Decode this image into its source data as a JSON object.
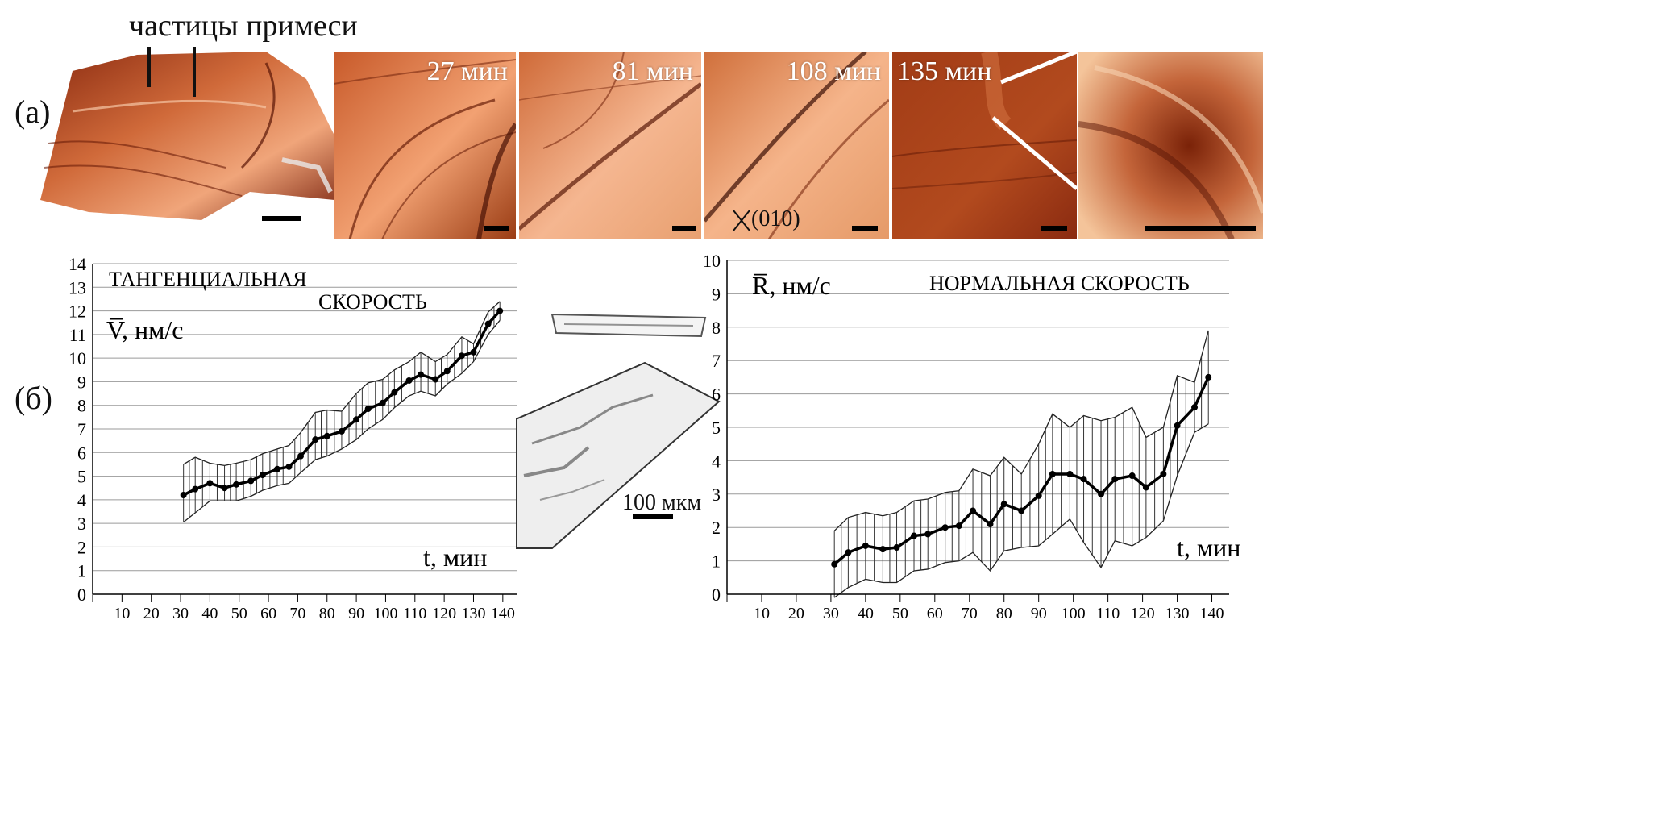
{
  "figure": {
    "label_a": "(а)",
    "label_b": "(б)",
    "impurity_label": "частицы примеси",
    "panels": [
      {
        "id": "3d",
        "time": ""
      },
      {
        "id": "p27",
        "time": "27 мин"
      },
      {
        "id": "p81",
        "time": "81 мин"
      },
      {
        "id": "p108",
        "time": "108 мин"
      },
      {
        "id": "p135",
        "time": "135 мин"
      },
      {
        "id": "zoom",
        "time": ""
      }
    ],
    "orientation_label": "(010)",
    "crystal_scale": "100 мкм"
  },
  "chart_data": [
    {
      "type": "line",
      "title": "ТАНГЕНЦИАЛЬНАЯ СКОРОСТЬ",
      "title_line1": "ТАНГЕНЦИАЛЬНАЯ",
      "title_line2": "СКОРОСТЬ",
      "ylabel": "V̅, нм/с",
      "xlabel": "t, мин",
      "xlim": [
        0,
        145
      ],
      "ylim": [
        0,
        14
      ],
      "xticks": [
        10,
        20,
        30,
        40,
        50,
        60,
        70,
        80,
        90,
        100,
        110,
        120,
        130,
        140
      ],
      "yticks": [
        0,
        1,
        2,
        3,
        4,
        5,
        6,
        7,
        8,
        9,
        10,
        11,
        12,
        13,
        14
      ],
      "grid": "horizontal",
      "series": [
        {
          "x": [
            31,
            35,
            40,
            45,
            49,
            54,
            58,
            63,
            67,
            71,
            76,
            80,
            85,
            90,
            94,
            99,
            103,
            108,
            112,
            117,
            121,
            126,
            130,
            135,
            139
          ],
          "y": [
            4.2,
            4.45,
            4.7,
            4.5,
            4.65,
            4.8,
            5.05,
            5.3,
            5.4,
            5.85,
            6.55,
            6.7,
            6.9,
            7.4,
            7.85,
            8.1,
            8.55,
            9.05,
            9.3,
            9.1,
            9.45,
            10.1,
            10.25,
            11.45,
            12.0
          ],
          "upper": [
            5.5,
            5.8,
            5.55,
            5.45,
            5.55,
            5.7,
            5.95,
            6.15,
            6.3,
            6.85,
            7.7,
            7.8,
            7.75,
            8.5,
            8.95,
            9.1,
            9.5,
            9.85,
            10.25,
            9.85,
            10.15,
            10.9,
            10.6,
            11.95,
            12.4
          ],
          "lower": [
            3.05,
            3.45,
            3.95,
            3.95,
            3.95,
            4.15,
            4.4,
            4.6,
            4.7,
            5.15,
            5.7,
            5.85,
            6.15,
            6.55,
            7.0,
            7.4,
            7.9,
            8.4,
            8.6,
            8.4,
            8.9,
            9.35,
            9.85,
            11.0,
            11.6
          ]
        }
      ]
    },
    {
      "type": "line",
      "title": "НОРМАЛЬНАЯ СКОРОСТЬ",
      "ylabel": "R̅, нм/с",
      "xlabel": "t, мин",
      "xlim": [
        0,
        145
      ],
      "ylim": [
        0,
        10
      ],
      "xticks": [
        10,
        20,
        30,
        40,
        50,
        60,
        70,
        80,
        90,
        100,
        110,
        120,
        130,
        140
      ],
      "yticks": [
        0,
        1,
        2,
        3,
        4,
        5,
        6,
        7,
        8,
        9,
        10
      ],
      "grid": "horizontal",
      "series": [
        {
          "x": [
            31,
            35,
            40,
            45,
            49,
            54,
            58,
            63,
            67,
            71,
            76,
            80,
            85,
            90,
            94,
            99,
            103,
            108,
            112,
            117,
            121,
            126,
            130,
            135,
            139
          ],
          "y": [
            0.9,
            1.25,
            1.45,
            1.35,
            1.4,
            1.75,
            1.8,
            2.0,
            2.05,
            2.5,
            2.1,
            2.7,
            2.5,
            2.95,
            3.6,
            3.6,
            3.45,
            3.0,
            3.45,
            3.55,
            3.2,
            3.6,
            5.05,
            5.6,
            6.5
          ],
          "upper": [
            1.9,
            2.3,
            2.45,
            2.35,
            2.45,
            2.8,
            2.85,
            3.05,
            3.1,
            3.75,
            3.55,
            4.1,
            3.6,
            4.5,
            5.4,
            5.0,
            5.35,
            5.2,
            5.3,
            5.6,
            4.7,
            5.0,
            6.55,
            6.35,
            7.9
          ],
          "lower": [
            -0.1,
            0.2,
            0.45,
            0.35,
            0.35,
            0.7,
            0.75,
            0.95,
            1.0,
            1.25,
            0.7,
            1.3,
            1.4,
            1.45,
            1.8,
            2.25,
            1.55,
            0.8,
            1.6,
            1.45,
            1.7,
            2.2,
            3.55,
            4.85,
            5.1
          ]
        }
      ]
    }
  ]
}
